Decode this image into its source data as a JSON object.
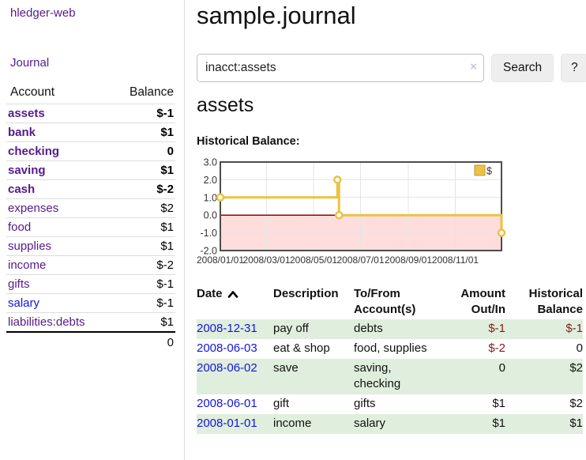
{
  "brand": "hledger-web",
  "nav": {
    "journal": "Journal"
  },
  "sidebar": {
    "columns": {
      "account": "Account",
      "balance": "Balance"
    },
    "accounts": [
      {
        "name": "assets",
        "balance": "$-1",
        "level": 1,
        "bold": true,
        "link": "visited",
        "neg": "strong"
      },
      {
        "name": "bank",
        "balance": "$1",
        "level": 2,
        "bold": true,
        "link": "visited",
        "neg": null
      },
      {
        "name": "checking",
        "balance": "0",
        "level": 3,
        "bold": true,
        "link": "visited",
        "neg": null
      },
      {
        "name": "saving",
        "balance": "$1",
        "level": 3,
        "bold": true,
        "link": "visited",
        "neg": null
      },
      {
        "name": "cash",
        "balance": "$-2",
        "level": 2,
        "bold": true,
        "link": "visited",
        "neg": "strong"
      },
      {
        "name": "expenses",
        "balance": "$2",
        "level": 1,
        "bold": false,
        "link": "visited",
        "neg": null
      },
      {
        "name": "food",
        "balance": "$1",
        "level": 2,
        "bold": false,
        "link": "visited",
        "neg": null
      },
      {
        "name": "supplies",
        "balance": "$1",
        "level": 2,
        "bold": false,
        "link": "visited",
        "neg": null
      },
      {
        "name": "income",
        "balance": "$-2",
        "level": 1,
        "bold": false,
        "link": "visited",
        "neg": "soft"
      },
      {
        "name": "gifts",
        "balance": "$-1",
        "level": 2,
        "bold": false,
        "link": "visited",
        "neg": "soft"
      },
      {
        "name": "salary",
        "balance": "$-1",
        "level": 2,
        "bold": false,
        "link": "new",
        "neg": "soft"
      },
      {
        "name": "liabilities:debts",
        "balance": "$1",
        "level": 1,
        "bold": false,
        "link": "visited",
        "neg": null
      }
    ],
    "total": "0"
  },
  "main": {
    "title": "sample.journal",
    "search": {
      "value": "inacct:assets",
      "clear": "×",
      "button": "Search",
      "help": "?"
    },
    "heading": "assets",
    "chart_title": "Historical Balance:"
  },
  "chart_data": {
    "type": "line",
    "step": true,
    "title": "Historical Balance",
    "series": [
      {
        "name": "$",
        "color": "#edc240",
        "points": [
          [
            "2008-01-01",
            1.0
          ],
          [
            "2008-06-01",
            2.0
          ],
          [
            "2008-06-03",
            0.0
          ],
          [
            "2008-12-31",
            -1.0
          ]
        ]
      }
    ],
    "xrange": [
      "2008-01-01",
      "2008-12-31"
    ],
    "ylim": [
      -2.0,
      3.0
    ],
    "yticks": [
      "3.0",
      "2.0",
      "1.0",
      "0.0",
      "-1.0",
      "-2.0"
    ],
    "xticks": [
      "2008/01/01",
      "2008/03/01",
      "2008/05/01",
      "2008/07/01",
      "2008/09/01",
      "2008/11/01"
    ],
    "grid": true,
    "negative_fill": "#ffdddd",
    "zero_line_color": "#990000",
    "legend": {
      "label": "$",
      "position": "top-right"
    }
  },
  "register": {
    "columns": [
      {
        "label": "Date",
        "sorted": "asc"
      },
      {
        "label": "Description"
      },
      {
        "label": "To/From Account(s)"
      },
      {
        "label": "Amount Out/In",
        "align": "right"
      },
      {
        "label": "Historical Balance",
        "align": "right"
      }
    ],
    "rows": [
      {
        "date": "2008-12-31",
        "description": "pay off",
        "accounts": "debts",
        "amount": "$-1",
        "balance": "$-1"
      },
      {
        "date": "2008-06-03",
        "description": "eat & shop",
        "accounts": "food, supplies",
        "amount": "$-2",
        "balance": "0"
      },
      {
        "date": "2008-06-02",
        "description": "save",
        "accounts": "saving, checking",
        "amount": "0",
        "balance": "$2"
      },
      {
        "date": "2008-06-01",
        "description": "gift",
        "accounts": "gifts",
        "amount": "$1",
        "balance": "$2"
      },
      {
        "date": "2008-01-01",
        "description": "income",
        "accounts": "salary",
        "amount": "$1",
        "balance": "$1"
      }
    ]
  }
}
